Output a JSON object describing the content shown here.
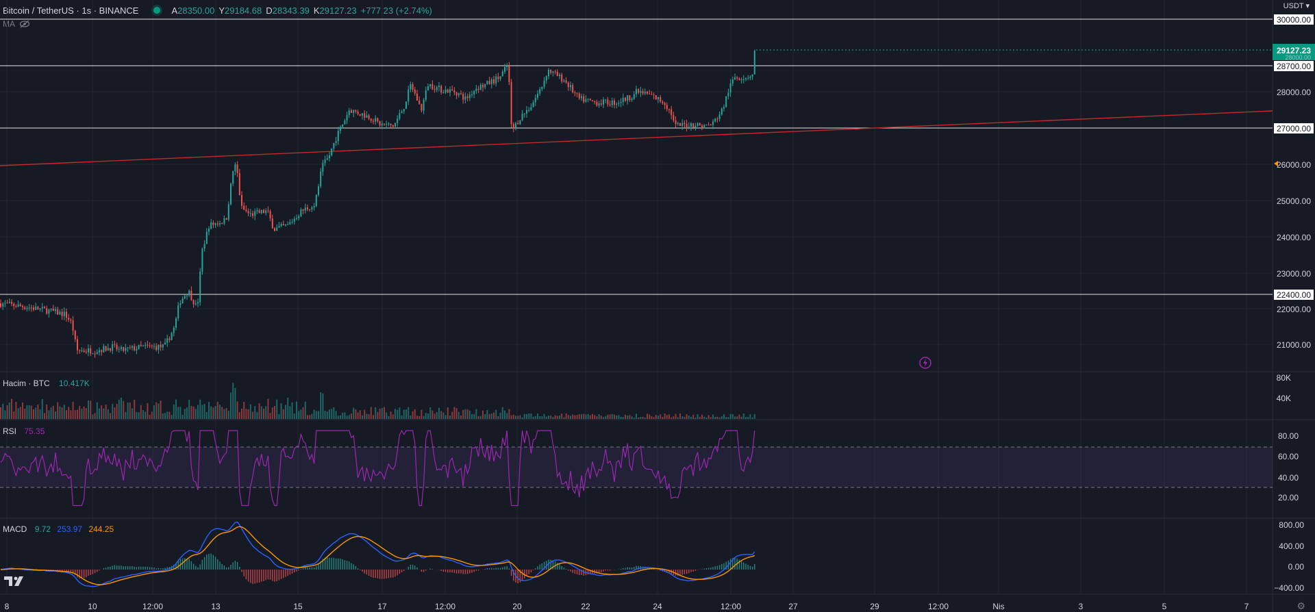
{
  "header": {
    "symbol": "Bitcoin / TetherUS · 1s · BINANCE",
    "open_label": "A",
    "open": "28350.00",
    "high_label": "Y",
    "high": "29184.68",
    "low_label": "D",
    "low": "28343.39",
    "close_label": "K",
    "close": "29127.23",
    "change": "+777.23 (+2.74%)"
  },
  "currency": "USDT",
  "ma_label": "MA",
  "price_axis": {
    "ticks": [
      "28000.00",
      "26000.00",
      "25000.00",
      "24000.00",
      "23000.00",
      "22000.00",
      "21000.00"
    ],
    "hlines": [
      "30000.00",
      "28700.00",
      "27000.00",
      "22400.00"
    ],
    "last_price": "29127.23",
    "last_price_sub": "28000.00"
  },
  "volume": {
    "label": "Hacim · BTC",
    "value": "10.417K",
    "ticks": [
      "80K",
      "40K"
    ]
  },
  "rsi": {
    "label": "RSI",
    "value": "75.35",
    "ticks": [
      "80.00",
      "60.00",
      "40.00",
      "20.00"
    ]
  },
  "macd": {
    "label": "MACD",
    "v1": "9.72",
    "v2": "253.97",
    "v3": "244.25",
    "ticks": [
      "800.00",
      "400.00",
      "0.00",
      "−400.00"
    ]
  },
  "time_axis": [
    "8",
    "10",
    "12:00",
    "13",
    "15",
    "17",
    "12:00",
    "20",
    "22",
    "24",
    "12:00",
    "27",
    "29",
    "12:00",
    "Nis",
    "3",
    "5",
    "7"
  ],
  "colors": {
    "up": "#26a69a",
    "down": "#ef5350",
    "rsi": "#9c27b0",
    "macd": "#2962ff",
    "signal": "#ff9800",
    "trend": "#c62828",
    "bg": "#161a25"
  },
  "icons": [
    "eye-slash-icon",
    "lightning-icon",
    "tradingview-logo",
    "gear-icon"
  ],
  "chart_data": {
    "type": "candlestick",
    "title": "Bitcoin / TetherUS · 1s · BINANCE",
    "ylim": [
      20800,
      30400
    ],
    "close_path": [
      [
        0,
        22150
      ],
      [
        40,
        22050
      ],
      [
        70,
        21950
      ],
      [
        95,
        21850
      ],
      [
        105,
        21600
      ],
      [
        112,
        20850
      ],
      [
        140,
        20850
      ],
      [
        165,
        20950
      ],
      [
        175,
        20850
      ],
      [
        210,
        20950
      ],
      [
        240,
        20950
      ],
      [
        255,
        21500
      ],
      [
        262,
        22200
      ],
      [
        275,
        22500
      ],
      [
        288,
        22000
      ],
      [
        295,
        23600
      ],
      [
        305,
        24300
      ],
      [
        330,
        24450
      ],
      [
        340,
        25800
      ],
      [
        345,
        26000
      ],
      [
        352,
        24800
      ],
      [
        365,
        24600
      ],
      [
        390,
        24700
      ],
      [
        400,
        24200
      ],
      [
        420,
        24300
      ],
      [
        440,
        24700
      ],
      [
        460,
        24900
      ],
      [
        470,
        25900
      ],
      [
        480,
        26200
      ],
      [
        490,
        26700
      ],
      [
        500,
        27100
      ],
      [
        510,
        27500
      ],
      [
        525,
        27400
      ],
      [
        540,
        27300
      ],
      [
        555,
        27100
      ],
      [
        575,
        27050
      ],
      [
        590,
        27600
      ],
      [
        600,
        28200
      ],
      [
        615,
        27500
      ],
      [
        625,
        28200
      ],
      [
        645,
        28050
      ],
      [
        665,
        28000
      ],
      [
        680,
        27800
      ],
      [
        695,
        28100
      ],
      [
        710,
        28200
      ],
      [
        730,
        28400
      ],
      [
        742,
        28750
      ],
      [
        747,
        26900
      ],
      [
        760,
        27300
      ],
      [
        775,
        27600
      ],
      [
        790,
        28100
      ],
      [
        800,
        28600
      ],
      [
        825,
        28300
      ],
      [
        845,
        27800
      ],
      [
        870,
        27700
      ],
      [
        900,
        27700
      ],
      [
        920,
        27850
      ],
      [
        930,
        28000
      ],
      [
        950,
        27900
      ],
      [
        970,
        27700
      ],
      [
        980,
        27400
      ],
      [
        985,
        27050
      ],
      [
        1010,
        27100
      ],
      [
        1030,
        27050
      ],
      [
        1040,
        27100
      ],
      [
        1055,
        27500
      ],
      [
        1063,
        28000
      ],
      [
        1072,
        28400
      ],
      [
        1090,
        28400
      ],
      [
        1100,
        28500
      ],
      [
        1104,
        29127
      ]
    ]
  }
}
